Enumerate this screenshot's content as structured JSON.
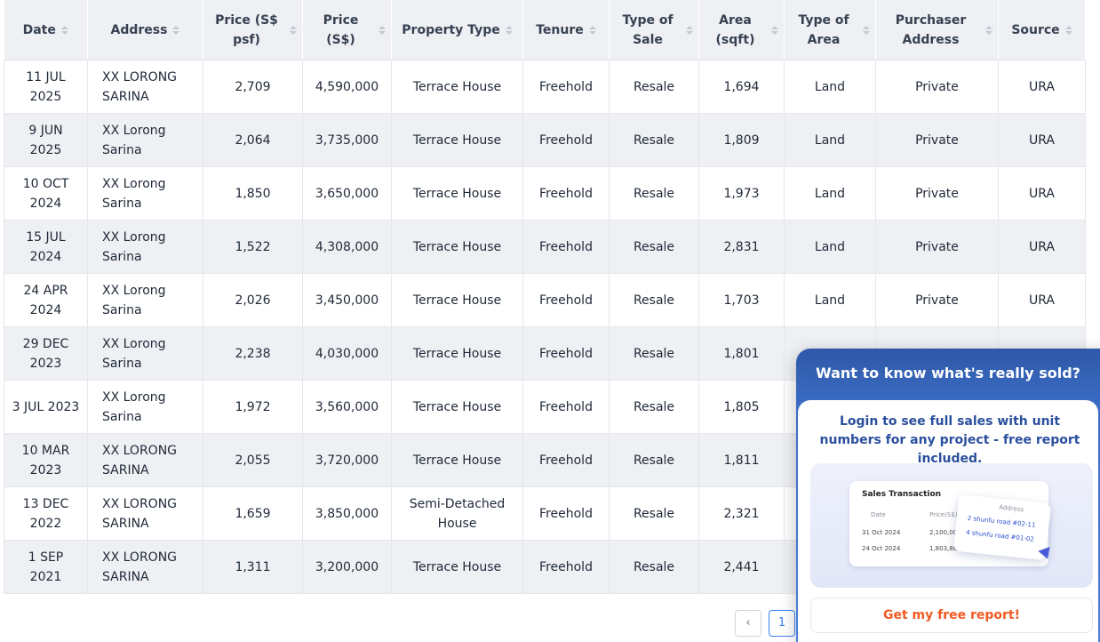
{
  "table": {
    "columns": [
      "Date",
      "Address",
      "Price (S$ psf)",
      "Price (S$)",
      "Property Type",
      "Tenure",
      "Type of Sale",
      "Area (sqft)",
      "Type of Area",
      "Purchaser Address",
      "Source"
    ],
    "rows": [
      [
        "11 JUL 2025",
        "XX LORONG SARINA",
        "2,709",
        "4,590,000",
        "Terrace House",
        "Freehold",
        "Resale",
        "1,694",
        "Land",
        "Private",
        "URA"
      ],
      [
        "9 JUN 2025",
        "XX Lorong Sarina",
        "2,064",
        "3,735,000",
        "Terrace House",
        "Freehold",
        "Resale",
        "1,809",
        "Land",
        "Private",
        "URA"
      ],
      [
        "10 OCT 2024",
        "XX Lorong Sarina",
        "1,850",
        "3,650,000",
        "Terrace House",
        "Freehold",
        "Resale",
        "1,973",
        "Land",
        "Private",
        "URA"
      ],
      [
        "15 JUL 2024",
        "XX Lorong Sarina",
        "1,522",
        "4,308,000",
        "Terrace House",
        "Freehold",
        "Resale",
        "2,831",
        "Land",
        "Private",
        "URA"
      ],
      [
        "24 APR 2024",
        "XX Lorong Sarina",
        "2,026",
        "3,450,000",
        "Terrace House",
        "Freehold",
        "Resale",
        "1,703",
        "Land",
        "Private",
        "URA"
      ],
      [
        "29 DEC 2023",
        "XX Lorong Sarina",
        "2,238",
        "4,030,000",
        "Terrace House",
        "Freehold",
        "Resale",
        "1,801",
        "",
        "",
        ""
      ],
      [
        "3 JUL 2023",
        "XX Lorong Sarina",
        "1,972",
        "3,560,000",
        "Terrace House",
        "Freehold",
        "Resale",
        "1,805",
        "",
        "",
        ""
      ],
      [
        "10 MAR 2023",
        "XX LORONG SARINA",
        "2,055",
        "3,720,000",
        "Terrace House",
        "Freehold",
        "Resale",
        "1,811",
        "",
        "",
        ""
      ],
      [
        "13 DEC 2022",
        "XX LORONG SARINA",
        "1,659",
        "3,850,000",
        "Semi-Detached House",
        "Freehold",
        "Resale",
        "2,321",
        "",
        "",
        ""
      ],
      [
        "1 SEP 2021",
        "XX LORONG SARINA",
        "1,311",
        "3,200,000",
        "Terrace House",
        "Freehold",
        "Resale",
        "2,441",
        "",
        "",
        ""
      ]
    ]
  },
  "pagination": {
    "prev_label": "‹",
    "current_page": "1"
  },
  "popup": {
    "title": "Want to know what's really sold?",
    "description": "Login to see full sales with unit numbers for any project - free report included.",
    "preview": {
      "title": "Sales Transaction",
      "col_date": "Date",
      "col_price": "Price(S$)",
      "col_address": "Address",
      "rows": [
        {
          "date": "31 Oct 2024",
          "price": "2,100,000",
          "address": "2 shunfu road #02-11"
        },
        {
          "date": "24 Oct 2024",
          "price": "1,803,888",
          "address": "4 shunfu road #01-02"
        }
      ]
    },
    "cta_label": "Get my free report!"
  },
  "colors": {
    "accent": "#3b82f6",
    "popup_blue": "#2f58a8",
    "cta_orange": "#f05a22"
  }
}
